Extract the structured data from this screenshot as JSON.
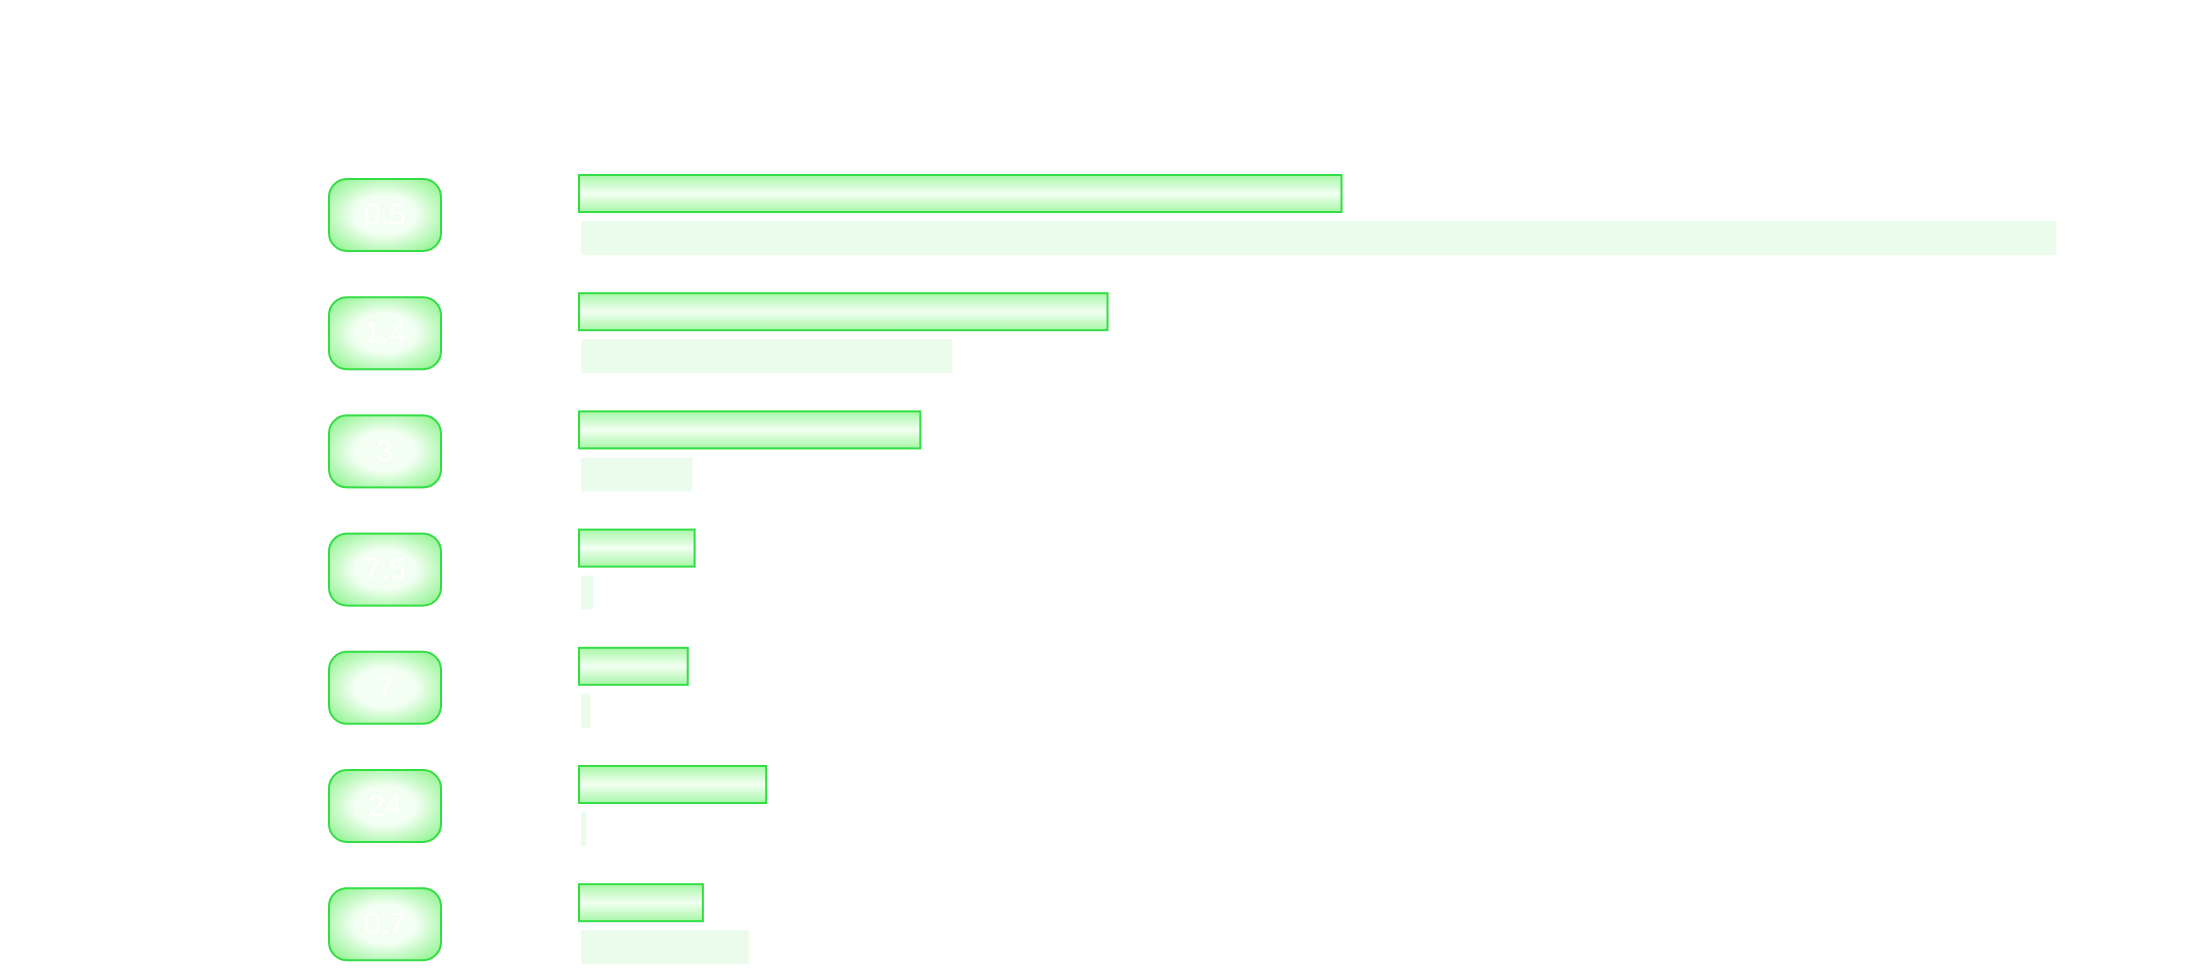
{
  "chart_data": {
    "type": "bar",
    "orientation": "horizontal",
    "title": "",
    "xlabel": "",
    "ylabel": "",
    "categories": [
      "0.5",
      "1.4",
      "3",
      "7.5",
      "7",
      "24",
      "0.7"
    ],
    "series": [
      {
        "values": [
          554,
          384,
          248,
          84,
          79,
          136,
          90
        ]
      },
      {
        "values": [
          1072,
          270,
          81,
          9,
          7,
          4,
          122
        ]
      }
    ],
    "xlim": [
      0,
      1100
    ],
    "grid": false,
    "legend": "none"
  },
  "colors": {
    "bar_fill_center": "#f2fff2",
    "bar_fill_edge": "#a8f7a8",
    "bar_stroke": "#33dd44",
    "pill_fill_center": "#f4fff4",
    "pill_fill_edge": "#9ef59e",
    "pill_stroke": "#33dd44",
    "secondary_bar": "#ecfcec",
    "label_text": "#ffffff"
  }
}
